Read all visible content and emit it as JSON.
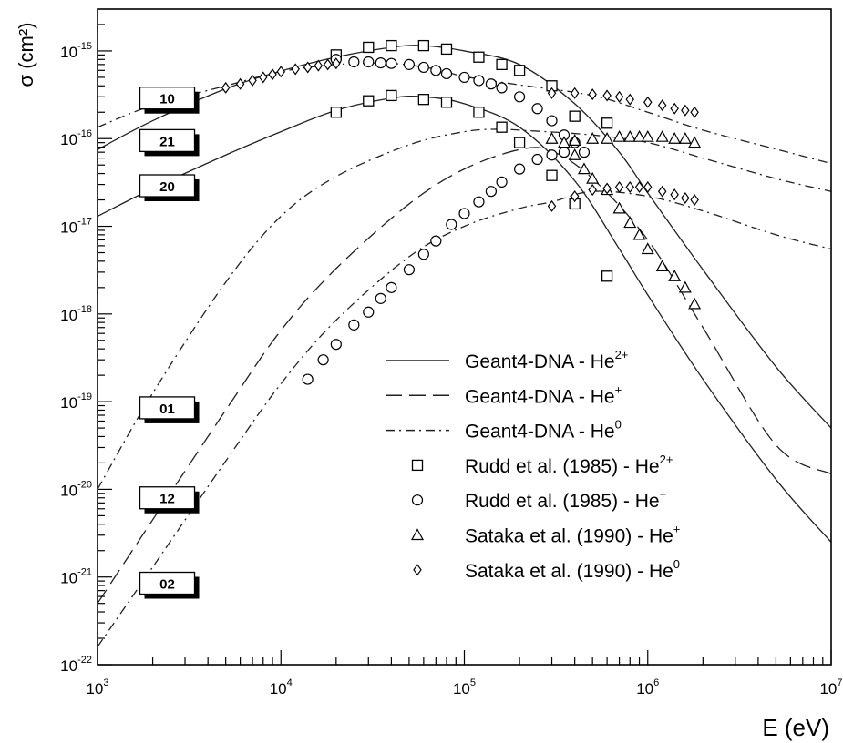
{
  "chart_data": {
    "type": "line",
    "xlabel": "E (eV)",
    "ylabel": "σ (cm²)",
    "xscale": "log",
    "yscale": "log",
    "xlim": [
      1000,
      10000000
    ],
    "ylim": [
      1e-22,
      3e-15
    ],
    "grid": false,
    "legend_position": "bottom-right",
    "x_ticks": [
      {
        "value": 1000,
        "base": "10",
        "exp": "3"
      },
      {
        "value": 10000,
        "base": "10",
        "exp": "4"
      },
      {
        "value": 100000,
        "base": "10",
        "exp": "5"
      },
      {
        "value": 1000000,
        "base": "10",
        "exp": "6"
      },
      {
        "value": 10000000,
        "base": "10",
        "exp": "7"
      }
    ],
    "y_ticks": [
      {
        "value": 1e-22,
        "base": "10",
        "exp": "-22"
      },
      {
        "value": 1e-21,
        "base": "10",
        "exp": "-21"
      },
      {
        "value": 1e-20,
        "base": "10",
        "exp": "-20"
      },
      {
        "value": 1e-19,
        "base": "10",
        "exp": "-19"
      },
      {
        "value": 1e-18,
        "base": "10",
        "exp": "-18"
      },
      {
        "value": 1e-17,
        "base": "10",
        "exp": "-17"
      },
      {
        "value": 1e-16,
        "base": "10",
        "exp": "-16"
      },
      {
        "value": 1e-15,
        "base": "10",
        "exp": "-15"
      }
    ],
    "curve_labels": [
      {
        "text": "10",
        "x": 2400,
        "y": 2.9e-16
      },
      {
        "text": "21",
        "x": 2400,
        "y": 9.5e-17
      },
      {
        "text": "20",
        "x": 2400,
        "y": 2.9e-17
      },
      {
        "text": "01",
        "x": 2400,
        "y": 8.5e-20
      },
      {
        "text": "12",
        "x": 2400,
        "y": 8e-21
      },
      {
        "text": "02",
        "x": 2400,
        "y": 8.5e-22
      }
    ],
    "legend": [
      {
        "marker": "line-solid",
        "text": "Geant4-DNA - He",
        "sup": "2+"
      },
      {
        "marker": "line-dashed",
        "text": "Geant4-DNA - He",
        "sup": "+"
      },
      {
        "marker": "line-dashdot",
        "text": "Geant4-DNA - He",
        "sup": "0"
      },
      {
        "marker": "square",
        "text": "Rudd et al. (1985) - He",
        "sup": "2+"
      },
      {
        "marker": "circle",
        "text": "Rudd et al. (1985) - He",
        "sup": "+"
      },
      {
        "marker": "triangle",
        "text": "Sataka et al. (1990) - He",
        "sup": "+"
      },
      {
        "marker": "diamond",
        "text": "Sataka et al. (1990) - He",
        "sup": "0"
      }
    ],
    "series": [
      {
        "label": "10",
        "style": "dashdot",
        "points": [
          [
            1000,
            1.35e-16
          ],
          [
            2000,
            2.4e-16
          ],
          [
            5000,
            4e-16
          ],
          [
            10000,
            5.8e-16
          ],
          [
            20000,
            7e-16
          ],
          [
            40000,
            7.2e-16
          ],
          [
            70000,
            6.2e-16
          ],
          [
            100000,
            5.1e-16
          ],
          [
            200000,
            4.1e-16
          ],
          [
            500000,
            3.1e-16
          ],
          [
            1000000,
            2e-16
          ],
          [
            2000000,
            1.25e-16
          ],
          [
            5000000,
            7.6e-17
          ],
          [
            10000000,
            5.2e-17
          ]
        ]
      },
      {
        "label": "21",
        "style": "solid",
        "points": [
          [
            1000,
            7.5e-17
          ],
          [
            2000,
            1.6e-16
          ],
          [
            5000,
            3.7e-16
          ],
          [
            10000,
            5.9e-16
          ],
          [
            20000,
            8.5e-16
          ],
          [
            40000,
            1.1e-15
          ],
          [
            60000,
            1.15e-15
          ],
          [
            100000,
            1e-15
          ],
          [
            200000,
            7e-16
          ],
          [
            400000,
            2.5e-16
          ],
          [
            700000,
            7e-17
          ],
          [
            1000000,
            2.4e-17
          ],
          [
            2000000,
            3.2e-18
          ],
          [
            5000000,
            2.5e-19
          ],
          [
            10000000,
            5e-20
          ]
        ]
      },
      {
        "label": "20",
        "style": "solid",
        "points": [
          [
            1000,
            1.3e-17
          ],
          [
            2000,
            2.7e-17
          ],
          [
            5000,
            6.5e-17
          ],
          [
            10000,
            1.2e-16
          ],
          [
            20000,
            2.1e-16
          ],
          [
            40000,
            2.9e-16
          ],
          [
            60000,
            3e-16
          ],
          [
            100000,
            2.5e-16
          ],
          [
            200000,
            1.35e-16
          ],
          [
            400000,
            3.3e-17
          ],
          [
            700000,
            5.5e-18
          ],
          [
            1000000,
            1.65e-18
          ],
          [
            2000000,
            1.8e-19
          ],
          [
            5000000,
            1.3e-20
          ],
          [
            10000000,
            2.5e-21
          ]
        ]
      },
      {
        "label": "01",
        "style": "dashdot",
        "points": [
          [
            1000,
            1e-20
          ],
          [
            2000,
            1.25e-19
          ],
          [
            5000,
            2.3e-18
          ],
          [
            10000,
            1.3e-17
          ],
          [
            20000,
            3.7e-17
          ],
          [
            50000,
            8.5e-17
          ],
          [
            100000,
            1.2e-16
          ],
          [
            150000,
            1.28e-16
          ],
          [
            200000,
            1.25e-16
          ],
          [
            500000,
            1.1e-16
          ],
          [
            1000000,
            9e-17
          ],
          [
            2000000,
            6e-17
          ],
          [
            5000000,
            3.5e-17
          ],
          [
            10000000,
            2.5e-17
          ]
        ]
      },
      {
        "label": "12",
        "style": "dashed",
        "points": [
          [
            1000,
            5e-22
          ],
          [
            2000,
            4.5e-21
          ],
          [
            5000,
            8e-20
          ],
          [
            10000,
            6.5e-19
          ],
          [
            20000,
            3.3e-18
          ],
          [
            50000,
            1.8e-17
          ],
          [
            100000,
            4.5e-17
          ],
          [
            200000,
            7.5e-17
          ],
          [
            300000,
            7.2e-17
          ],
          [
            500000,
            3.5e-17
          ],
          [
            1000000,
            7e-18
          ],
          [
            2000000,
            7e-19
          ],
          [
            5000000,
            3.2e-20
          ],
          [
            10000000,
            1.5e-20
          ]
        ]
      },
      {
        "label": "02",
        "style": "dashdot",
        "points": [
          [
            1000,
            1.6e-22
          ],
          [
            2000,
            1.3e-21
          ],
          [
            5000,
            2.1e-20
          ],
          [
            10000,
            1.6e-19
          ],
          [
            20000,
            8.5e-19
          ],
          [
            50000,
            4.5e-18
          ],
          [
            100000,
            1e-17
          ],
          [
            200000,
            1.6e-17
          ],
          [
            300000,
            1.9e-17
          ],
          [
            500000,
            2.5e-17
          ],
          [
            1000000,
            2.2e-17
          ],
          [
            2000000,
            1.5e-17
          ],
          [
            5000000,
            8e-18
          ],
          [
            10000000,
            5.5e-18
          ]
        ]
      }
    ],
    "data_points": {
      "rudd_he2": [
        [
          20000,
          9e-16
        ],
        [
          30000,
          1.1e-15
        ],
        [
          40000,
          1.15e-15
        ],
        [
          60000,
          1.15e-15
        ],
        [
          80000,
          1.05e-15
        ],
        [
          120000,
          8.5e-16
        ],
        [
          160000,
          7e-16
        ],
        [
          200000,
          6e-16
        ],
        [
          300000,
          4e-16
        ],
        [
          400000,
          1.8e-16
        ],
        [
          600000,
          1.5e-16
        ],
        [
          20000,
          2e-16
        ],
        [
          30000,
          2.7e-16
        ],
        [
          40000,
          3.1e-16
        ],
        [
          60000,
          2.8e-16
        ],
        [
          80000,
          2.6e-16
        ],
        [
          120000,
          2e-16
        ],
        [
          160000,
          1.35e-16
        ],
        [
          200000,
          9e-17
        ],
        [
          300000,
          3.8e-17
        ],
        [
          400000,
          1.8e-17
        ],
        [
          600000,
          2.7e-18
        ]
      ],
      "rudd_he1": [
        [
          20000,
          8e-16
        ],
        [
          25000,
          7.5e-16
        ],
        [
          30000,
          7.5e-16
        ],
        [
          35000,
          7.3e-16
        ],
        [
          40000,
          7.2e-16
        ],
        [
          50000,
          7e-16
        ],
        [
          60000,
          6.5e-16
        ],
        [
          70000,
          6e-16
        ],
        [
          80000,
          5.5e-16
        ],
        [
          100000,
          5e-16
        ],
        [
          120000,
          4.6e-16
        ],
        [
          140000,
          4.2e-16
        ],
        [
          160000,
          3.8e-16
        ],
        [
          200000,
          3e-16
        ],
        [
          250000,
          2.2e-16
        ],
        [
          300000,
          1.6e-16
        ],
        [
          350000,
          1.1e-16
        ],
        [
          400000,
          9e-17
        ],
        [
          450000,
          7e-17
        ],
        [
          14000,
          1.8e-19
        ],
        [
          17000,
          3e-19
        ],
        [
          20000,
          4.5e-19
        ],
        [
          25000,
          7.5e-19
        ],
        [
          30000,
          1.05e-18
        ],
        [
          35000,
          1.5e-18
        ],
        [
          40000,
          2e-18
        ],
        [
          50000,
          3.2e-18
        ],
        [
          60000,
          4.8e-18
        ],
        [
          70000,
          6.8e-18
        ],
        [
          85000,
          1.05e-17
        ],
        [
          100000,
          1.4e-17
        ],
        [
          120000,
          1.9e-17
        ],
        [
          140000,
          2.5e-17
        ],
        [
          160000,
          3.2e-17
        ],
        [
          200000,
          4.5e-17
        ],
        [
          250000,
          5.8e-17
        ],
        [
          300000,
          6.5e-17
        ],
        [
          350000,
          7e-17
        ]
      ],
      "sataka_he1": [
        [
          300000,
          1e-16
        ],
        [
          350000,
          9e-17
        ],
        [
          400000,
          9.5e-17
        ],
        [
          500000,
          1e-16
        ],
        [
          600000,
          1e-16
        ],
        [
          700000,
          1.05e-16
        ],
        [
          800000,
          1.05e-16
        ],
        [
          900000,
          1.05e-16
        ],
        [
          1000000,
          1.05e-16
        ],
        [
          1200000,
          1.05e-16
        ],
        [
          1400000,
          1e-16
        ],
        [
          1600000,
          1e-16
        ],
        [
          1800000,
          9e-17
        ],
        [
          400000,
          6.5e-17
        ],
        [
          450000,
          4.5e-17
        ],
        [
          500000,
          3.5e-17
        ],
        [
          600000,
          2.6e-17
        ],
        [
          700000,
          1.6e-17
        ],
        [
          800000,
          1.1e-17
        ],
        [
          900000,
          8e-18
        ],
        [
          1000000,
          5.5e-18
        ],
        [
          1200000,
          3.5e-18
        ],
        [
          1400000,
          2.7e-18
        ],
        [
          1600000,
          2e-18
        ],
        [
          1800000,
          1.3e-18
        ]
      ],
      "sataka_he0": [
        [
          5000,
          3.8e-16
        ],
        [
          6000,
          4.2e-16
        ],
        [
          7000,
          4.6e-16
        ],
        [
          8000,
          5e-16
        ],
        [
          9000,
          5.4e-16
        ],
        [
          10000,
          5.8e-16
        ],
        [
          12000,
          6.2e-16
        ],
        [
          14000,
          6.5e-16
        ],
        [
          16000,
          6.8e-16
        ],
        [
          18000,
          7e-16
        ],
        [
          20000,
          7.2e-16
        ],
        [
          300000,
          3.3e-16
        ],
        [
          400000,
          3.3e-16
        ],
        [
          500000,
          3.2e-16
        ],
        [
          600000,
          3.1e-16
        ],
        [
          700000,
          3e-16
        ],
        [
          800000,
          2.8e-16
        ],
        [
          1000000,
          2.6e-16
        ],
        [
          1200000,
          2.4e-16
        ],
        [
          1400000,
          2.2e-16
        ],
        [
          1600000,
          2.1e-16
        ],
        [
          1800000,
          2e-16
        ],
        [
          300000,
          1.7e-17
        ],
        [
          400000,
          2.2e-17
        ],
        [
          500000,
          2.6e-17
        ],
        [
          600000,
          2.7e-17
        ],
        [
          700000,
          2.8e-17
        ],
        [
          800000,
          2.8e-17
        ],
        [
          900000,
          2.8e-17
        ],
        [
          1000000,
          2.8e-17
        ],
        [
          1200000,
          2.5e-17
        ],
        [
          1400000,
          2.3e-17
        ],
        [
          1600000,
          2.1e-17
        ],
        [
          1800000,
          2e-17
        ]
      ]
    }
  }
}
